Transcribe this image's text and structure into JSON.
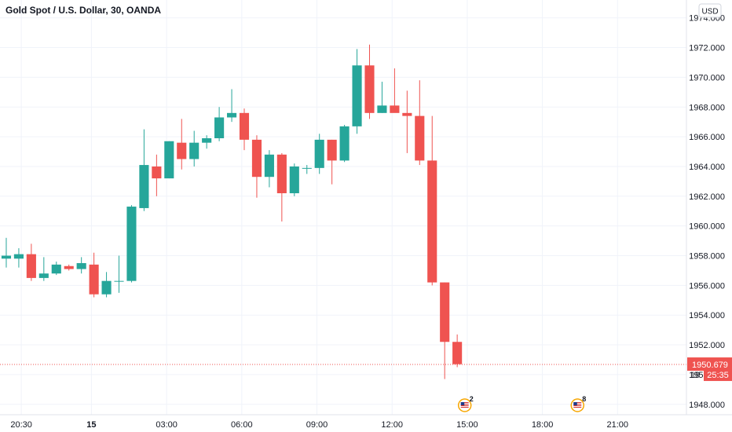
{
  "chart_data": {
    "type": "candlestick",
    "title": "Gold Spot / U.S. Dollar, 30, OANDA",
    "currency": "USD",
    "y_axis": {
      "ticks": [
        1948,
        1950,
        1952,
        1954,
        1956,
        1958,
        1960,
        1962,
        1964,
        1966,
        1968,
        1970,
        1972,
        1974
      ],
      "labels": [
        "1948.000",
        "1950.000",
        "1952.000",
        "1954.000",
        "1956.000",
        "1958.000",
        "1960.000",
        "1962.000",
        "1964.000",
        "1966.000",
        "1968.000",
        "1970.000",
        "1972.000",
        "1974.000"
      ],
      "ylim": [
        1947.3,
        1975.2
      ]
    },
    "x_axis": {
      "ticks": [
        {
          "index": 1.2,
          "label": "20:30",
          "bold": false
        },
        {
          "index": 6.8,
          "label": "15",
          "bold": true
        },
        {
          "index": 12.8,
          "label": "03:00",
          "bold": false
        },
        {
          "index": 18.8,
          "label": "06:00",
          "bold": false
        },
        {
          "index": 24.8,
          "label": "09:00",
          "bold": false
        },
        {
          "index": 30.8,
          "label": "12:00",
          "bold": false
        },
        {
          "index": 36.8,
          "label": "15:00",
          "bold": false
        },
        {
          "index": 42.8,
          "label": "18:00",
          "bold": false
        },
        {
          "index": 48.8,
          "label": "21:00",
          "bold": false
        }
      ],
      "xlim": [
        -0.5,
        54.3
      ]
    },
    "colors": {
      "up": "#26a69a",
      "down": "#ef5350",
      "grid": "#f0f3fa",
      "text": "#131722"
    },
    "candles": [
      {
        "o": 1957.8,
        "h": 1959.2,
        "l": 1957.2,
        "c": 1958.0
      },
      {
        "o": 1957.8,
        "h": 1958.5,
        "l": 1957.2,
        "c": 1958.1
      },
      {
        "o": 1958.1,
        "h": 1958.8,
        "l": 1956.3,
        "c": 1956.5
      },
      {
        "o": 1956.5,
        "h": 1957.9,
        "l": 1956.3,
        "c": 1956.8
      },
      {
        "o": 1956.8,
        "h": 1957.6,
        "l": 1956.7,
        "c": 1957.4
      },
      {
        "o": 1957.3,
        "h": 1957.4,
        "l": 1957.0,
        "c": 1957.1
      },
      {
        "o": 1957.1,
        "h": 1957.9,
        "l": 1956.8,
        "c": 1957.5
      },
      {
        "o": 1957.4,
        "h": 1958.2,
        "l": 1955.2,
        "c": 1955.4
      },
      {
        "o": 1955.4,
        "h": 1956.9,
        "l": 1955.2,
        "c": 1956.3
      },
      {
        "o": 1956.3,
        "h": 1958.0,
        "l": 1955.5,
        "c": 1956.3
      },
      {
        "o": 1956.3,
        "h": 1961.4,
        "l": 1956.2,
        "c": 1961.3
      },
      {
        "o": 1961.2,
        "h": 1966.5,
        "l": 1961.0,
        "c": 1964.1
      },
      {
        "o": 1964.0,
        "h": 1964.8,
        "l": 1962.0,
        "c": 1963.2
      },
      {
        "o": 1963.2,
        "h": 1965.7,
        "l": 1963.2,
        "c": 1965.7
      },
      {
        "o": 1965.6,
        "h": 1967.2,
        "l": 1963.8,
        "c": 1964.5
      },
      {
        "o": 1964.5,
        "h": 1966.4,
        "l": 1964.0,
        "c": 1965.6
      },
      {
        "o": 1965.6,
        "h": 1966.1,
        "l": 1965.2,
        "c": 1965.9
      },
      {
        "o": 1965.9,
        "h": 1968.0,
        "l": 1965.7,
        "c": 1967.3
      },
      {
        "o": 1967.3,
        "h": 1969.2,
        "l": 1967.0,
        "c": 1967.6
      },
      {
        "o": 1967.6,
        "h": 1967.9,
        "l": 1965.1,
        "c": 1965.8
      },
      {
        "o": 1965.8,
        "h": 1966.1,
        "l": 1961.9,
        "c": 1963.3
      },
      {
        "o": 1963.3,
        "h": 1965.1,
        "l": 1962.6,
        "c": 1964.8
      },
      {
        "o": 1964.8,
        "h": 1964.9,
        "l": 1960.3,
        "c": 1962.2
      },
      {
        "o": 1962.2,
        "h": 1964.2,
        "l": 1962.0,
        "c": 1964.0
      },
      {
        "o": 1963.9,
        "h": 1964.1,
        "l": 1963.5,
        "c": 1963.9
      },
      {
        "o": 1963.9,
        "h": 1966.2,
        "l": 1963.5,
        "c": 1965.8
      },
      {
        "o": 1965.8,
        "h": 1965.8,
        "l": 1962.8,
        "c": 1964.4
      },
      {
        "o": 1964.4,
        "h": 1966.8,
        "l": 1964.3,
        "c": 1966.7
      },
      {
        "o": 1966.7,
        "h": 1971.9,
        "l": 1966.2,
        "c": 1970.8
      },
      {
        "o": 1970.8,
        "h": 1972.2,
        "l": 1967.2,
        "c": 1967.6
      },
      {
        "o": 1967.6,
        "h": 1969.7,
        "l": 1967.6,
        "c": 1968.1
      },
      {
        "o": 1968.1,
        "h": 1970.6,
        "l": 1967.8,
        "c": 1967.6
      },
      {
        "o": 1967.6,
        "h": 1969.1,
        "l": 1964.9,
        "c": 1967.4
      },
      {
        "o": 1967.4,
        "h": 1969.8,
        "l": 1964.1,
        "c": 1964.4
      },
      {
        "o": 1964.4,
        "h": 1967.4,
        "l": 1956.0,
        "c": 1956.2
      },
      {
        "o": 1956.2,
        "h": 1956.2,
        "l": 1949.7,
        "c": 1952.2
      },
      {
        "o": 1952.2,
        "h": 1952.7,
        "l": 1950.5,
        "c": 1950.7
      }
    ],
    "current_price": {
      "value": 1950.679,
      "label": "1950.679",
      "countdown": "25:35",
      "overlap_tick_label": "19"
    },
    "events": [
      {
        "index": 36.6,
        "count": "2"
      },
      {
        "index": 45.6,
        "count": "8"
      }
    ]
  }
}
